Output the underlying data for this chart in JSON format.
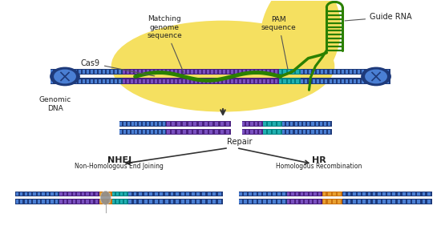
{
  "bg_color": "#ffffff",
  "yellow_color": "#f5e060",
  "dna_blue_dark": "#1e3a7a",
  "dna_blue_light": "#4a7fd4",
  "dna_purple_dark": "#4a2080",
  "dna_purple_light": "#7a50c0",
  "dna_teal_dark": "#008080",
  "dna_teal_light": "#20b0b0",
  "dna_orange_dark": "#c87010",
  "dna_orange_light": "#e8a030",
  "guide_green": "#2a8000",
  "arrow_color": "#333333",
  "text_color": "#222222",
  "gray_blob": "#909090",
  "cas9_label": "Cas9",
  "genomic_dna_label": "Genomic\nDNA",
  "matching_label": "Matching\ngenome\nsequence",
  "pam_label": "PAM\nsequence",
  "guide_rna_label": "Guide RNA",
  "repair_label": "Repair",
  "nhej_label": "NHEJ",
  "nhej_sub_label": "Non-Homologous End Joining",
  "hr_label": "HR",
  "hr_sub_label": "Homologous Recombination"
}
